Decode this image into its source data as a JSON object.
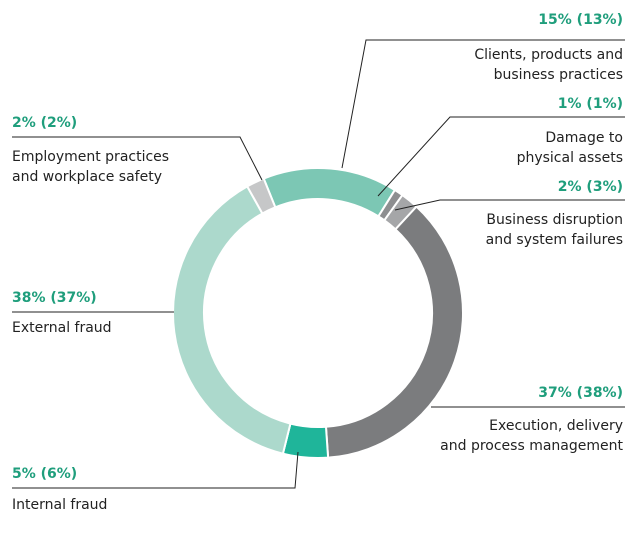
{
  "chart_data": {
    "type": "donut",
    "categories": [
      [
        "Clients, products and",
        "business practices"
      ],
      [
        "Damage to",
        "physical assets"
      ],
      [
        "Business disruption",
        "and system failures"
      ],
      [
        "Execution, delivery",
        "and process management"
      ],
      [
        "Internal fraud"
      ],
      [
        "External fraud"
      ],
      [
        "Employment practices",
        "and workplace safety"
      ]
    ],
    "values": [
      15,
      1,
      2,
      37,
      5,
      38,
      2
    ],
    "value_labels": [
      "15% (13%)",
      "1% (1%)",
      "2% (3%)",
      "37% (38%)",
      "5% (6%)",
      "38% (37%)",
      "2% (2%)"
    ],
    "colors": [
      "#7cc7b4",
      "#8d8e90",
      "#a5a6a8",
      "#7b7c7e",
      "#1fb59a",
      "#acd9cc",
      "#c6c7c8"
    ]
  }
}
